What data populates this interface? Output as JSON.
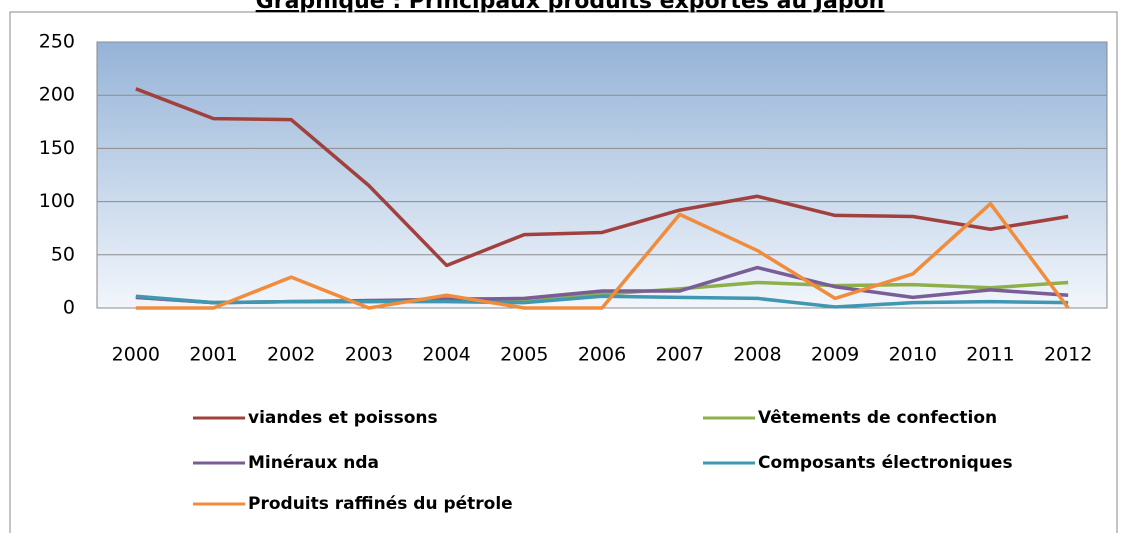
{
  "chart_data": {
    "type": "line",
    "title": "Graphique : Principaux produits exportés au Japon",
    "categories": [
      "2000",
      "2001",
      "2002",
      "2003",
      "2004",
      "2005",
      "2006",
      "2007",
      "2008",
      "2009",
      "2010",
      "2011",
      "2012"
    ],
    "series": [
      {
        "name": "viandes et poissons",
        "color": "#a0413e",
        "values": [
          206,
          178,
          177,
          115,
          40,
          69,
          71,
          92,
          105,
          87,
          86,
          74,
          86
        ]
      },
      {
        "name": "Vêtements de confection",
        "color": "#8db04a",
        "values": [
          10,
          5,
          6,
          6,
          9,
          8,
          13,
          18,
          24,
          21,
          22,
          19,
          24
        ]
      },
      {
        "name": "Minéraux nda",
        "color": "#7a5c96",
        "values": [
          10,
          5,
          6,
          7,
          8,
          9,
          16,
          16,
          38,
          20,
          10,
          17,
          12
        ]
      },
      {
        "name": "Composants électroniques",
        "color": "#3f97b1",
        "values": [
          11,
          5,
          6,
          6,
          6,
          5,
          11,
          10,
          9,
          1,
          5,
          6,
          5
        ]
      },
      {
        "name": "Produits raffinés du pétrole",
        "color": "#f08c3c",
        "values": [
          0,
          0,
          29,
          0,
          12,
          0,
          0,
          88,
          54,
          9,
          32,
          98,
          0
        ]
      }
    ],
    "ylim": [
      0,
      250
    ],
    "yticks": [
      0,
      50,
      100,
      150,
      200,
      250
    ],
    "grid": true
  }
}
